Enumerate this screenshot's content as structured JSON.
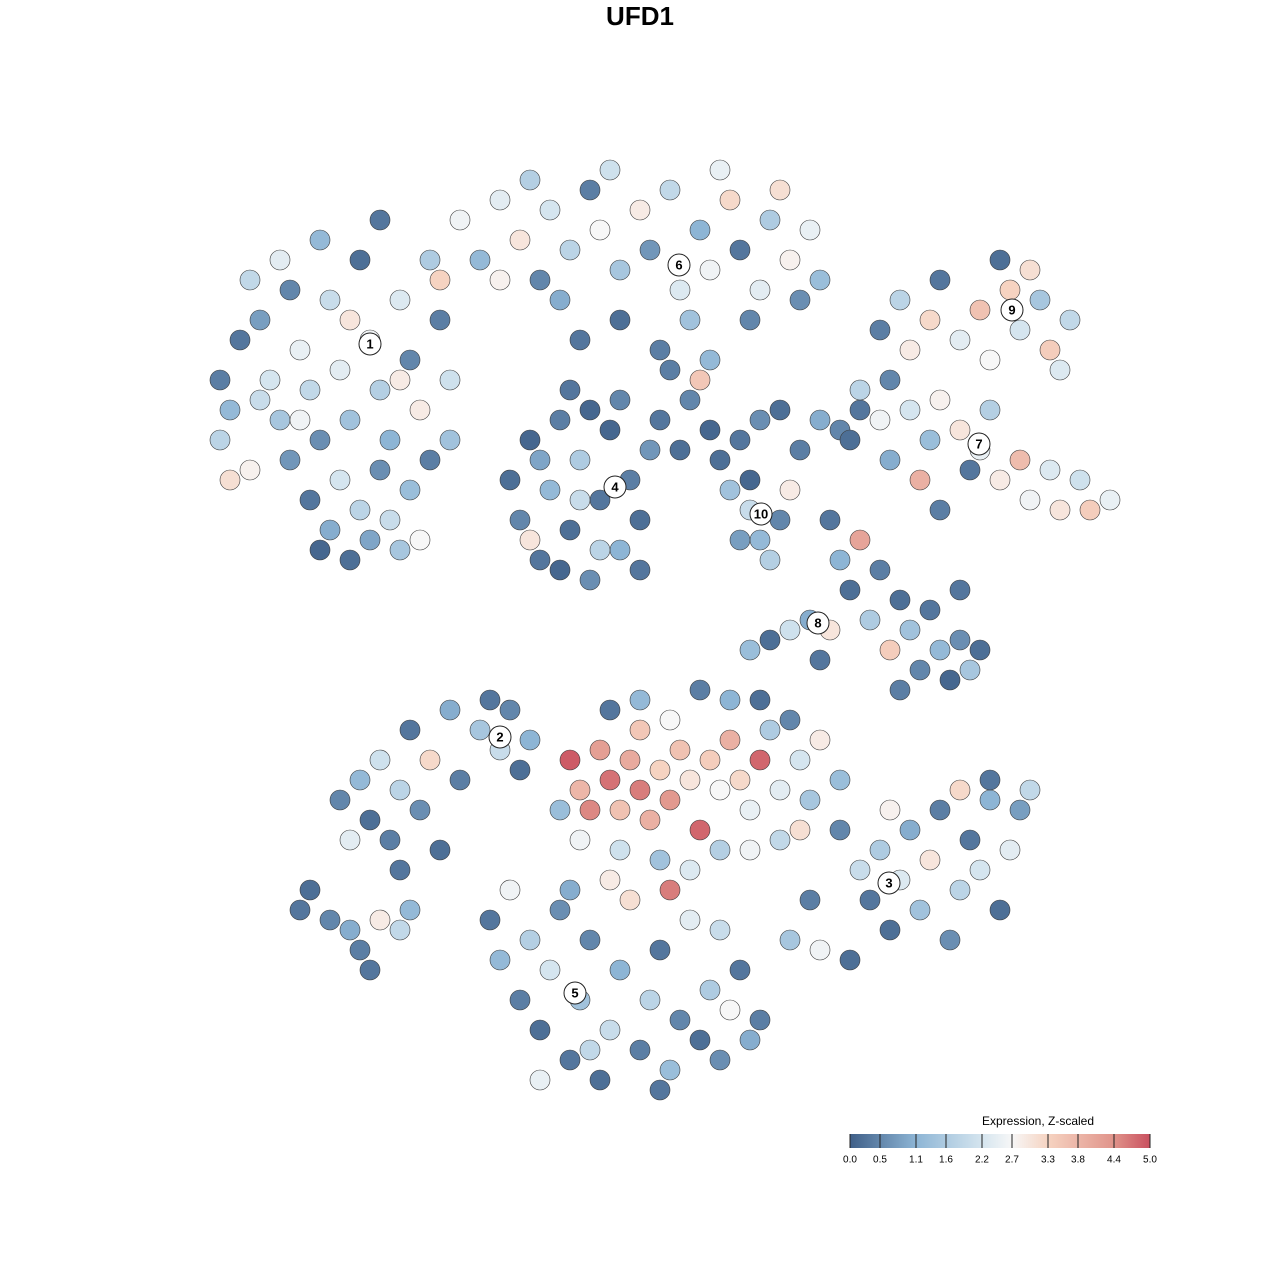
{
  "chart_data": {
    "type": "scatter",
    "title": "UFD1",
    "xlim": [
      0,
      100
    ],
    "ylim": [
      0,
      100
    ],
    "colorbar": {
      "title": "Expression, Z-scaled",
      "lim": [
        0,
        5
      ],
      "ticks": [
        {
          "value": 0,
          "label": "0.0"
        },
        0.5,
        1.1,
        1.6,
        2.2,
        2.7,
        3.3,
        3.8,
        4.4,
        {
          "value": 5,
          "label": "5.0"
        }
      ],
      "colors": [
        [
          0,
          "#3f5f88"
        ],
        [
          1.1,
          "#8db5d5"
        ],
        [
          2.2,
          "#d5e5ef"
        ],
        [
          2.7,
          "#f7f7f7"
        ],
        [
          3.3,
          "#f6d3c1"
        ],
        [
          4.4,
          "#e0938a"
        ],
        [
          5,
          "#c9505f"
        ]
      ]
    },
    "clusters": [
      {
        "label": "1",
        "x": 23,
        "y": 79.6
      },
      {
        "label": "2",
        "x": 36,
        "y": 40.3
      },
      {
        "label": "3",
        "x": 74.9,
        "y": 25.7
      },
      {
        "label": "4",
        "x": 47.5,
        "y": 65.3
      },
      {
        "label": "5",
        "x": 43.5,
        "y": 14.7
      },
      {
        "label": "6",
        "x": 53.9,
        "y": 87.5
      },
      {
        "label": "7",
        "x": 83.9,
        "y": 69.6
      },
      {
        "label": "8",
        "x": 67.8,
        "y": 51.7
      },
      {
        "label": "9",
        "x": 87.2,
        "y": 83
      },
      {
        "label": "10",
        "x": 62.1,
        "y": 62.6
      }
    ],
    "points": [
      [
        8,
        76,
        0.4
      ],
      [
        9,
        73,
        1.2
      ],
      [
        8,
        70,
        1.8
      ],
      [
        10,
        80,
        0.3
      ],
      [
        11,
        67,
        2.8
      ],
      [
        12,
        82,
        0.8
      ],
      [
        13,
        76,
        2.2
      ],
      [
        14,
        72,
        1.5
      ],
      [
        15,
        85,
        0.5
      ],
      [
        16,
        79,
        2.5
      ],
      [
        17,
        75,
        1.9
      ],
      [
        18,
        70,
        0.6
      ],
      [
        19,
        84,
        2.0
      ],
      [
        20,
        77,
        2.4
      ],
      [
        21,
        72,
        1.4
      ],
      [
        22,
        88,
        0.2
      ],
      [
        23,
        80,
        2.6
      ],
      [
        24,
        75,
        1.7
      ],
      [
        25,
        70,
        1.1
      ],
      [
        26,
        84,
        2.3
      ],
      [
        27,
        78,
        0.5
      ],
      [
        28,
        73,
        2.9
      ],
      [
        29,
        88,
        1.6
      ],
      [
        30,
        82,
        0.4
      ],
      [
        31,
        76,
        2.1
      ],
      [
        17,
        64,
        0.3
      ],
      [
        19,
        61,
        1.0
      ],
      [
        21,
        58,
        0.2
      ],
      [
        23,
        60,
        0.9
      ],
      [
        25,
        62,
        2.0
      ],
      [
        27,
        65,
        1.3
      ],
      [
        20,
        66,
        2.2
      ],
      [
        24,
        67,
        0.6
      ],
      [
        29,
        68,
        0.4
      ],
      [
        22,
        63,
        1.8
      ],
      [
        18,
        59,
        0.1
      ],
      [
        26,
        59,
        1.5
      ],
      [
        15,
        68,
        0.7
      ],
      [
        12,
        74,
        2.0
      ],
      [
        28,
        60,
        2.7
      ],
      [
        14,
        88,
        2.4
      ],
      [
        18,
        90,
        1.2
      ],
      [
        24,
        92,
        0.3
      ],
      [
        11,
        86,
        1.9
      ],
      [
        9,
        66,
        3.1
      ],
      [
        16,
        72,
        2.6
      ],
      [
        21,
        82,
        3.0
      ],
      [
        26,
        76,
        2.9
      ],
      [
        31,
        70,
        1.4
      ],
      [
        30,
        86,
        3.3
      ],
      [
        32,
        92,
        2.6
      ],
      [
        34,
        88,
        1.2
      ],
      [
        36,
        94,
        2.4
      ],
      [
        38,
        90,
        3.0
      ],
      [
        40,
        86,
        0.5
      ],
      [
        41,
        93,
        2.2
      ],
      [
        43,
        89,
        1.8
      ],
      [
        45,
        95,
        0.4
      ],
      [
        46,
        91,
        2.7
      ],
      [
        48,
        87,
        1.5
      ],
      [
        50,
        93,
        2.9
      ],
      [
        51,
        89,
        0.7
      ],
      [
        53,
        95,
        1.9
      ],
      [
        54,
        85,
        2.3
      ],
      [
        56,
        91,
        1.1
      ],
      [
        57,
        87,
        2.6
      ],
      [
        59,
        94,
        3.2
      ],
      [
        60,
        89,
        0.3
      ],
      [
        62,
        85,
        2.4
      ],
      [
        63,
        92,
        1.6
      ],
      [
        65,
        88,
        2.8
      ],
      [
        66,
        84,
        0.6
      ],
      [
        67,
        91,
        2.5
      ],
      [
        68,
        86,
        1.3
      ],
      [
        36,
        86,
        2.8
      ],
      [
        42,
        84,
        1.0
      ],
      [
        48,
        82,
        0.2
      ],
      [
        55,
        82,
        1.4
      ],
      [
        61,
        82,
        0.5
      ],
      [
        39,
        96,
        1.7
      ],
      [
        47,
        97,
        2.1
      ],
      [
        58,
        97,
        2.5
      ],
      [
        64,
        95,
        3.1
      ],
      [
        44,
        80,
        0.3
      ],
      [
        52,
        79,
        0.4
      ],
      [
        57,
        78,
        1.2
      ],
      [
        37,
        66,
        0.2
      ],
      [
        38,
        62,
        0.5
      ],
      [
        39,
        70,
        0.1
      ],
      [
        40,
        58,
        0.3
      ],
      [
        41,
        65,
        1.2
      ],
      [
        42,
        72,
        0.4
      ],
      [
        43,
        61,
        0.2
      ],
      [
        44,
        68,
        1.6
      ],
      [
        45,
        56,
        0.6
      ],
      [
        46,
        64,
        0.3
      ],
      [
        47,
        71,
        0.1
      ],
      [
        48,
        59,
        1.1
      ],
      [
        49,
        66,
        0.4
      ],
      [
        50,
        62,
        0.2
      ],
      [
        51,
        69,
        0.7
      ],
      [
        43,
        75,
        0.3
      ],
      [
        45,
        73,
        0.1
      ],
      [
        39,
        60,
        3.0
      ],
      [
        46,
        59,
        1.8
      ],
      [
        48,
        74,
        0.5
      ],
      [
        44,
        64,
        2.0
      ],
      [
        40,
        68,
        0.9
      ],
      [
        50,
        57,
        0.3
      ],
      [
        42,
        57,
        0.1
      ],
      [
        52,
        72,
        0.3
      ],
      [
        54,
        69,
        0.2
      ],
      [
        55,
        74,
        0.5
      ],
      [
        57,
        71,
        0.1
      ],
      [
        56,
        76,
        3.5
      ],
      [
        53,
        77,
        0.4
      ],
      [
        58,
        68,
        0.2
      ],
      [
        60,
        70,
        0.3
      ],
      [
        62,
        72,
        0.6
      ],
      [
        64,
        73,
        0.2
      ],
      [
        66,
        69,
        0.4
      ],
      [
        68,
        72,
        1.0
      ],
      [
        70,
        71,
        0.5
      ],
      [
        72,
        73,
        0.3
      ],
      [
        61,
        66,
        0.1
      ],
      [
        59,
        65,
        1.4
      ],
      [
        61,
        63,
        2.0
      ],
      [
        62,
        60,
        1.2
      ],
      [
        64,
        62,
        0.5
      ],
      [
        65,
        65,
        2.9
      ],
      [
        63,
        58,
        1.7
      ],
      [
        60,
        60,
        0.8
      ],
      [
        74,
        81,
        0.4
      ],
      [
        76,
        84,
        1.8
      ],
      [
        77,
        79,
        2.9
      ],
      [
        79,
        82,
        3.2
      ],
      [
        80,
        86,
        0.3
      ],
      [
        82,
        80,
        2.4
      ],
      [
        84,
        83,
        3.6
      ],
      [
        85,
        78,
        2.7
      ],
      [
        87,
        85,
        3.3
      ],
      [
        88,
        81,
        2.2
      ],
      [
        90,
        84,
        1.5
      ],
      [
        91,
        79,
        3.4
      ],
      [
        93,
        82,
        1.9
      ],
      [
        92,
        77,
        2.3
      ],
      [
        86,
        88,
        0.2
      ],
      [
        89,
        87,
        3.1
      ],
      [
        72,
        75,
        1.8
      ],
      [
        74,
        72,
        2.6
      ],
      [
        75,
        76,
        0.5
      ],
      [
        77,
        73,
        2.2
      ],
      [
        79,
        70,
        1.3
      ],
      [
        80,
        74,
        2.8
      ],
      [
        82,
        71,
        3.0
      ],
      [
        84,
        69,
        2.5
      ],
      [
        85,
        73,
        1.7
      ],
      [
        86,
        66,
        2.9
      ],
      [
        88,
        68,
        3.7
      ],
      [
        89,
        64,
        2.6
      ],
      [
        91,
        67,
        2.3
      ],
      [
        92,
        63,
        3.0
      ],
      [
        94,
        66,
        2.1
      ],
      [
        95,
        63,
        3.4
      ],
      [
        97,
        64,
        2.5
      ],
      [
        83,
        67,
        0.3
      ],
      [
        78,
        66,
        3.9
      ],
      [
        75,
        68,
        1.0
      ],
      [
        80,
        63,
        0.4
      ],
      [
        71,
        70,
        0.2
      ],
      [
        69,
        62,
        0.3
      ],
      [
        70,
        58,
        1.1
      ],
      [
        71,
        55,
        0.2
      ],
      [
        72,
        60,
        4.1
      ],
      [
        73,
        52,
        1.6
      ],
      [
        74,
        57,
        0.4
      ],
      [
        75,
        49,
        3.4
      ],
      [
        76,
        54,
        0.2
      ],
      [
        77,
        51,
        1.4
      ],
      [
        78,
        47,
        0.5
      ],
      [
        79,
        53,
        0.3
      ],
      [
        80,
        49,
        1.2
      ],
      [
        81,
        46,
        0.1
      ],
      [
        82,
        50,
        0.6
      ],
      [
        83,
        47,
        1.5
      ],
      [
        84,
        49,
        0.2
      ],
      [
        76,
        45,
        0.4
      ],
      [
        67,
        52,
        1.0
      ],
      [
        68,
        48,
        0.3
      ],
      [
        65,
        51,
        2.1
      ],
      [
        63,
        50,
        0.2
      ],
      [
        61,
        49,
        1.3
      ],
      [
        69,
        51,
        3.0
      ],
      [
        82,
        55,
        0.3
      ],
      [
        20,
        34,
        0.5
      ],
      [
        22,
        36,
        1.2
      ],
      [
        23,
        32,
        0.2
      ],
      [
        24,
        38,
        2.1
      ],
      [
        25,
        30,
        0.4
      ],
      [
        26,
        35,
        1.8
      ],
      [
        27,
        41,
        0.3
      ],
      [
        28,
        33,
        0.6
      ],
      [
        29,
        38,
        3.2
      ],
      [
        30,
        29,
        0.2
      ],
      [
        31,
        43,
        1.0
      ],
      [
        32,
        36,
        0.4
      ],
      [
        34,
        41,
        1.5
      ],
      [
        35,
        44,
        0.3
      ],
      [
        36,
        39,
        2.0
      ],
      [
        37,
        43,
        0.5
      ],
      [
        38,
        37,
        0.2
      ],
      [
        39,
        40,
        1.1
      ],
      [
        21,
        30,
        2.4
      ],
      [
        26,
        27,
        0.3
      ],
      [
        16,
        23,
        0.3
      ],
      [
        17,
        25,
        0.2
      ],
      [
        19,
        22,
        0.5
      ],
      [
        21,
        21,
        1.0
      ],
      [
        22,
        19,
        0.4
      ],
      [
        24,
        22,
        2.9
      ],
      [
        26,
        21,
        1.9
      ],
      [
        23,
        17,
        0.3
      ],
      [
        27,
        23,
        1.2
      ],
      [
        43,
        38,
        4.9
      ],
      [
        44,
        35,
        3.8
      ],
      [
        45,
        33,
        4.5
      ],
      [
        46,
        39,
        4.2
      ],
      [
        47,
        36,
        4.7
      ],
      [
        48,
        33,
        3.6
      ],
      [
        49,
        38,
        4.0
      ],
      [
        50,
        35,
        4.6
      ],
      [
        51,
        32,
        3.9
      ],
      [
        52,
        37,
        3.3
      ],
      [
        53,
        34,
        4.3
      ],
      [
        54,
        39,
        3.6
      ],
      [
        55,
        36,
        3.0
      ],
      [
        56,
        31,
        4.8
      ],
      [
        57,
        38,
        3.4
      ],
      [
        58,
        35,
        2.7
      ],
      [
        59,
        40,
        3.9
      ],
      [
        60,
        36,
        3.2
      ],
      [
        61,
        33,
        2.5
      ],
      [
        62,
        38,
        4.8
      ],
      [
        63,
        41,
        1.6
      ],
      [
        64,
        35,
        2.4
      ],
      [
        65,
        42,
        0.5
      ],
      [
        66,
        38,
        2.2
      ],
      [
        67,
        34,
        1.5
      ],
      [
        68,
        40,
        2.9
      ],
      [
        70,
        36,
        1.3
      ],
      [
        47,
        43,
        0.3
      ],
      [
        50,
        44,
        1.2
      ],
      [
        53,
        42,
        2.7
      ],
      [
        56,
        45,
        0.4
      ],
      [
        59,
        44,
        1.1
      ],
      [
        62,
        44,
        0.2
      ],
      [
        44,
        30,
        2.6
      ],
      [
        48,
        29,
        2.1
      ],
      [
        52,
        28,
        1.4
      ],
      [
        55,
        27,
        2.3
      ],
      [
        58,
        29,
        1.7
      ],
      [
        61,
        29,
        2.6
      ],
      [
        64,
        30,
        1.9
      ],
      [
        42,
        33,
        1.3
      ],
      [
        66,
        31,
        3.1
      ],
      [
        53,
        25,
        4.6
      ],
      [
        50,
        41,
        3.5
      ],
      [
        70,
        31,
        0.5
      ],
      [
        72,
        27,
        2.0
      ],
      [
        73,
        24,
        0.3
      ],
      [
        74,
        29,
        1.6
      ],
      [
        75,
        21,
        0.2
      ],
      [
        76,
        26,
        2.3
      ],
      [
        77,
        31,
        1.0
      ],
      [
        78,
        23,
        1.4
      ],
      [
        79,
        28,
        3.0
      ],
      [
        80,
        33,
        0.4
      ],
      [
        81,
        20,
        0.6
      ],
      [
        82,
        25,
        1.8
      ],
      [
        83,
        30,
        0.3
      ],
      [
        84,
        27,
        2.2
      ],
      [
        85,
        34,
        1.1
      ],
      [
        86,
        23,
        0.2
      ],
      [
        87,
        29,
        2.4
      ],
      [
        88,
        33,
        0.8
      ],
      [
        85,
        36,
        0.3
      ],
      [
        82,
        35,
        3.2
      ],
      [
        89,
        35,
        1.9
      ],
      [
        67,
        24,
        0.4
      ],
      [
        65,
        20,
        1.5
      ],
      [
        68,
        19,
        2.6
      ],
      [
        71,
        18,
        0.2
      ],
      [
        75,
        33,
        2.8
      ],
      [
        35,
        22,
        0.3
      ],
      [
        36,
        18,
        1.2
      ],
      [
        37,
        25,
        2.6
      ],
      [
        38,
        14,
        0.4
      ],
      [
        39,
        20,
        1.7
      ],
      [
        40,
        11,
        0.2
      ],
      [
        41,
        17,
        2.2
      ],
      [
        42,
        23,
        0.6
      ],
      [
        43,
        8,
        0.3
      ],
      [
        44,
        14,
        1.4
      ],
      [
        45,
        20,
        0.5
      ],
      [
        46,
        6,
        0.2
      ],
      [
        47,
        11,
        2.0
      ],
      [
        48,
        17,
        1.1
      ],
      [
        49,
        24,
        3.1
      ],
      [
        50,
        9,
        0.4
      ],
      [
        51,
        14,
        1.8
      ],
      [
        52,
        19,
        0.3
      ],
      [
        53,
        7,
        1.3
      ],
      [
        54,
        12,
        0.5
      ],
      [
        55,
        22,
        2.4
      ],
      [
        56,
        10,
        0.2
      ],
      [
        57,
        15,
        1.6
      ],
      [
        58,
        8,
        0.6
      ],
      [
        59,
        13,
        2.7
      ],
      [
        60,
        17,
        0.3
      ],
      [
        61,
        10,
        1.0
      ],
      [
        62,
        12,
        0.4
      ],
      [
        40,
        6,
        2.5
      ],
      [
        45,
        9,
        1.9
      ],
      [
        52,
        5,
        0.3
      ],
      [
        58,
        21,
        2.0
      ],
      [
        43,
        25,
        1.0
      ],
      [
        47,
        26,
        2.9
      ]
    ]
  }
}
